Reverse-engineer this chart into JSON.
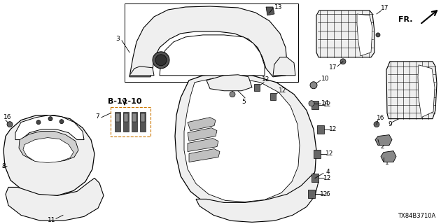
{
  "bg_color": "#ffffff",
  "diagram_code": "TX84B3710A",
  "fr_label": "FR.",
  "b_ref": "B-11-10",
  "line_color": "#000000",
  "line_width": 0.8,
  "dpi": 100,
  "fig_width": 6.4,
  "fig_height": 3.2,
  "small_font": 6.5,
  "medium_font": 8.0,
  "gray_fill": "#d8d8d8",
  "light_fill": "#efefef",
  "white_fill": "#ffffff"
}
